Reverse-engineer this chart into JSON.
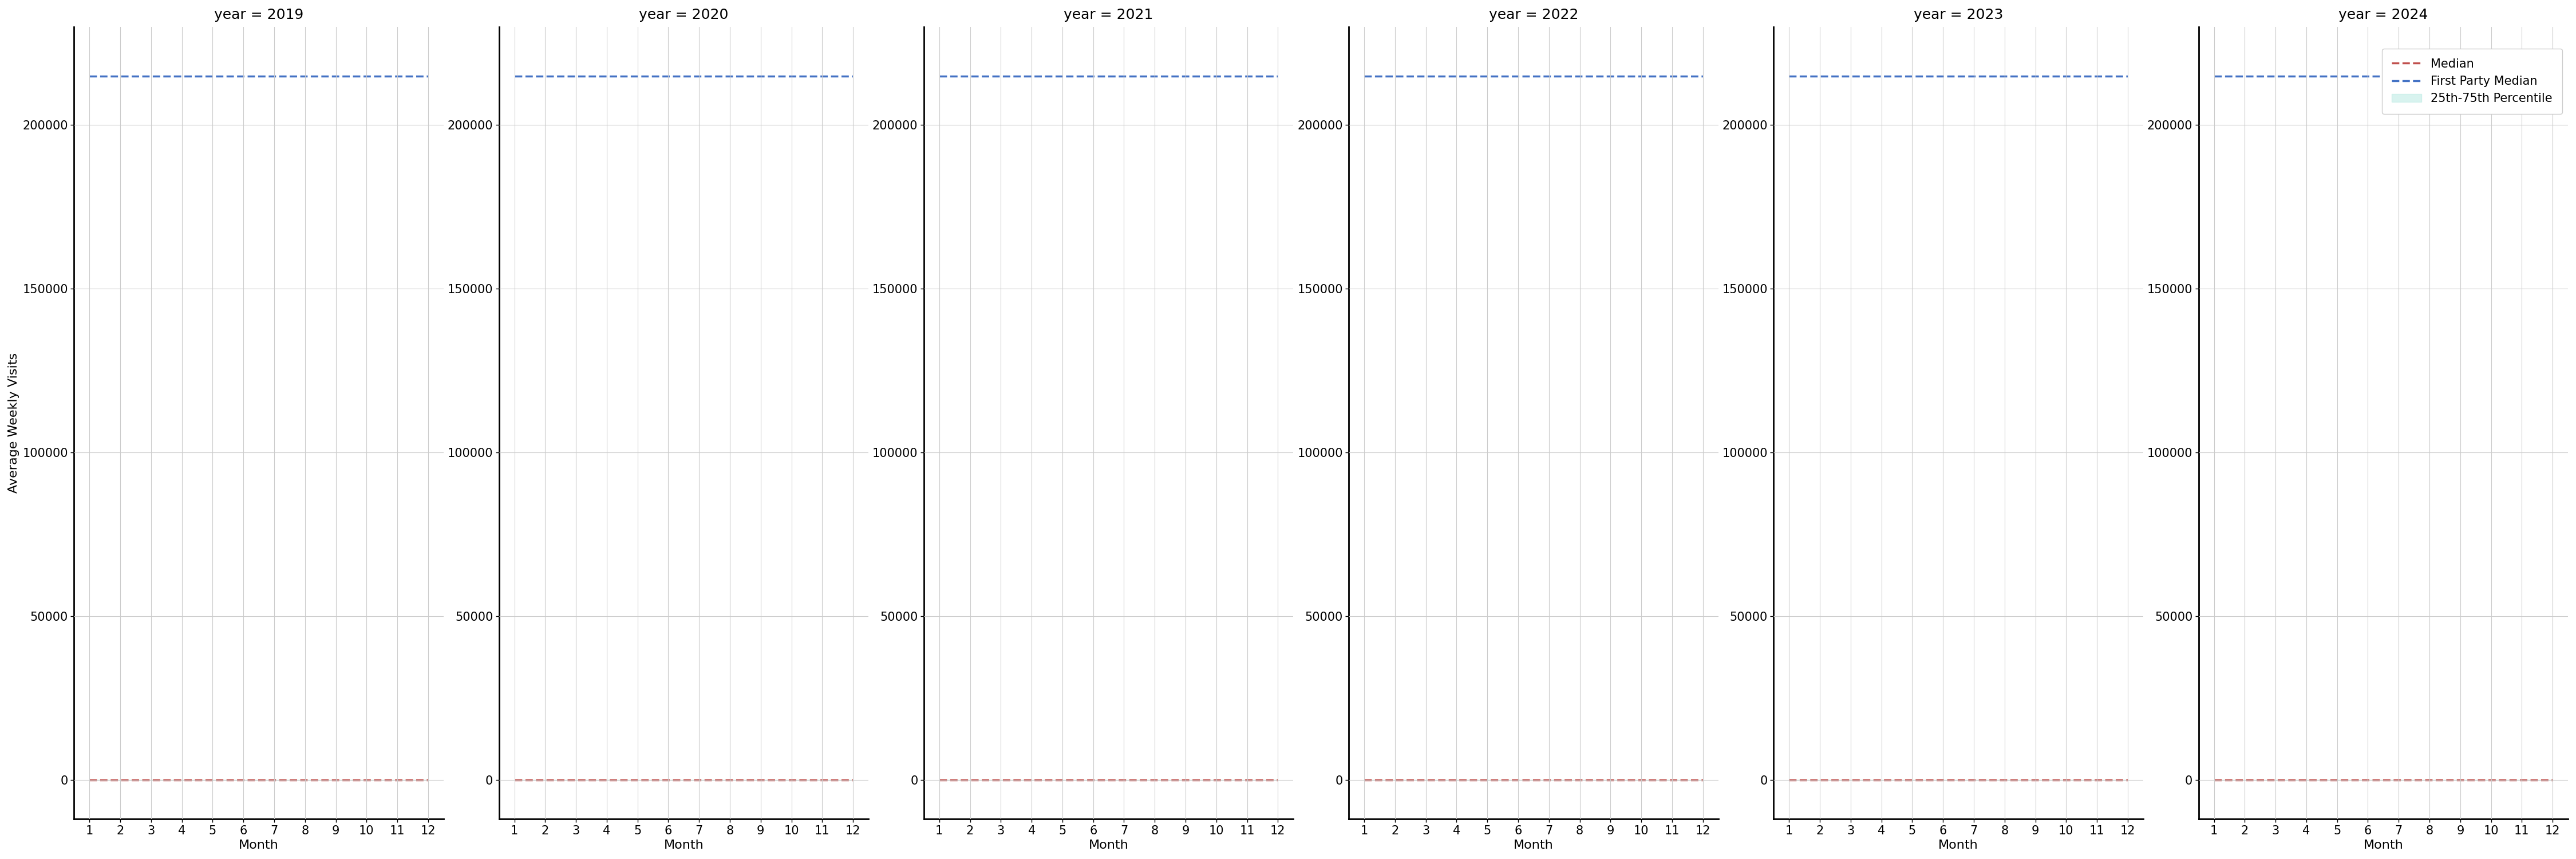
{
  "years": [
    2019,
    2020,
    2021,
    2022,
    2023,
    2024
  ],
  "months": [
    1,
    2,
    3,
    4,
    5,
    6,
    7,
    8,
    9,
    10,
    11,
    12
  ],
  "median_value": 0,
  "first_party_median_value": 215000,
  "percentile_25": 0,
  "percentile_75": 0,
  "ylim": [
    -12000,
    230000
  ],
  "yticks": [
    0,
    50000,
    100000,
    150000,
    200000
  ],
  "xlabel": "Month",
  "ylabel": "Average Weekly Visits",
  "median_color": "#c0504d",
  "first_party_color": "#4472c4",
  "percentile_color": "#b2e8e0",
  "background_color": "#ffffff",
  "grid_color": "#cccccc",
  "legend_labels": [
    "Median",
    "First Party Median",
    "25th-75th Percentile"
  ],
  "title_fontsize": 18,
  "axis_fontsize": 16,
  "tick_fontsize": 15,
  "legend_fontsize": 15
}
